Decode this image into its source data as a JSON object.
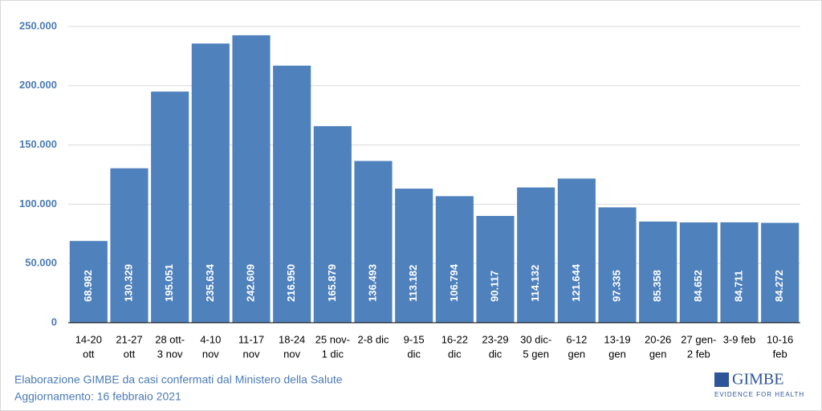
{
  "chart_data": {
    "type": "bar",
    "categories": [
      [
        "14-20",
        "ott"
      ],
      [
        "21-27",
        "ott"
      ],
      [
        "28 ott-",
        "3 nov"
      ],
      [
        "4-10",
        "nov"
      ],
      [
        "11-17",
        "nov"
      ],
      [
        "18-24",
        "nov"
      ],
      [
        "25 nov-",
        "1 dic"
      ],
      [
        "2-8 dic"
      ],
      [
        "9-15",
        "dic"
      ],
      [
        "16-22",
        "dic"
      ],
      [
        "23-29",
        "dic"
      ],
      [
        "30 dic-",
        "5 gen"
      ],
      [
        "6-12",
        "gen"
      ],
      [
        "13-19",
        "gen"
      ],
      [
        "20-26",
        "gen"
      ],
      [
        "27 gen-",
        "2 feb"
      ],
      [
        "3-9 feb"
      ],
      [
        "10-16",
        "feb"
      ]
    ],
    "values": [
      68982,
      130329,
      195051,
      235634,
      242609,
      216950,
      165879,
      136493,
      113182,
      106794,
      90117,
      114132,
      121644,
      97335,
      85358,
      84652,
      84711,
      84272
    ],
    "value_labels": [
      "68.982",
      "130.329",
      "195.051",
      "235.634",
      "242.609",
      "216.950",
      "165.879",
      "136.493",
      "113.182",
      "106.794",
      "90.117",
      "114.132",
      "121.644",
      "97.335",
      "85.358",
      "84.652",
      "84.711",
      "84.272"
    ],
    "color": "#4f81bd",
    "ylim": [
      0,
      250000
    ],
    "yticks": [
      0,
      {
        "value": 50000,
        "label": "50.000"
      },
      {
        "value": 100000,
        "label": "100.000"
      },
      {
        "value": 150000,
        "label": "150.000"
      },
      {
        "value": 200000,
        "label": "200.000"
      },
      {
        "value": 250000,
        "label": "250.000"
      }
    ],
    "grid": true
  },
  "footer": {
    "source": "Elaborazione GIMBE da casi confermati dal Ministero della Salute",
    "updated": "Aggiornamento: 16 febbraio 2021",
    "logo": "GIMBE",
    "logo_tagline": "EVIDENCE FOR HEALTH"
  }
}
